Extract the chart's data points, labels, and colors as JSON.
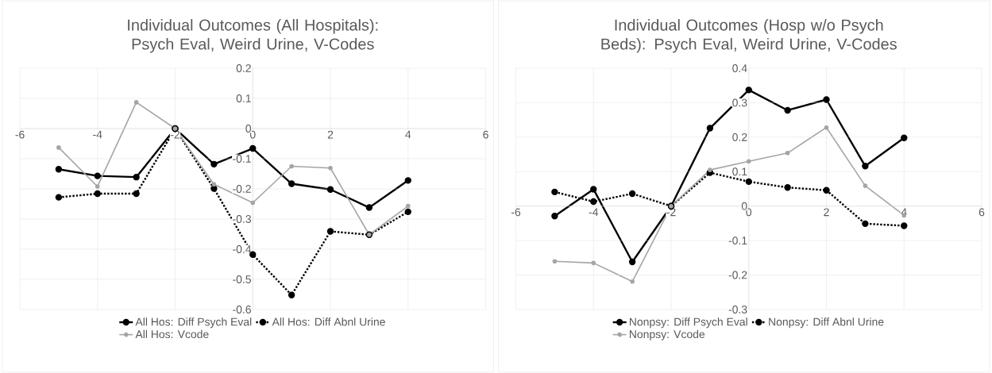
{
  "chart_data": [
    {
      "type": "line",
      "title": "Individual Outcomes (All Hospitals):  Psych Eval, Weird Urine, V-Codes",
      "x": [
        -5,
        -4,
        -3,
        -2,
        -1,
        0,
        1,
        2,
        3,
        4
      ],
      "xlim": [
        -6,
        6
      ],
      "xticks": [
        -6,
        -4,
        -2,
        0,
        2,
        4,
        6
      ],
      "ylim": [
        -0.6,
        0.2
      ],
      "yticks": [
        -0.6,
        -0.5,
        -0.4,
        -0.3,
        -0.2,
        -0.1,
        0,
        0.1,
        0.2
      ],
      "grid": true,
      "legend": "bottom",
      "marker": "circle",
      "series": [
        {
          "name": "All Hos: Diff Psych Eval",
          "color": "#000000",
          "line_style": "solid",
          "values": [
            -0.135,
            -0.157,
            -0.161,
            0,
            -0.118,
            -0.066,
            -0.183,
            -0.202,
            -0.262,
            -0.172
          ]
        },
        {
          "name": "All Hos: Diff Abnl Urine",
          "color": "#000000",
          "line_style": "dotted",
          "values": [
            -0.228,
            -0.216,
            -0.216,
            0,
            -0.199,
            -0.418,
            -0.552,
            -0.341,
            -0.352,
            -0.276
          ]
        },
        {
          "name": "All Hos: Vcode",
          "color": "#a5a5a5",
          "line_style": "solid",
          "values": [
            -0.063,
            -0.192,
            0.087,
            0,
            -0.185,
            -0.246,
            -0.125,
            -0.131,
            -0.352,
            -0.257
          ]
        }
      ]
    },
    {
      "type": "line",
      "title": "Individual Outcomes (Hosp w/o Psych Beds): Psych Eval, Weird Urine, V-Codes",
      "x": [
        -5,
        -4,
        -3,
        -2,
        -1,
        0,
        1,
        2,
        3,
        4
      ],
      "xlim": [
        -6,
        6
      ],
      "xticks": [
        -6,
        -4,
        -2,
        0,
        2,
        4,
        6
      ],
      "ylim": [
        -0.3,
        0.4
      ],
      "yticks": [
        -0.3,
        -0.2,
        -0.1,
        0,
        0.1,
        0.2,
        0.3,
        0.4
      ],
      "grid": true,
      "legend": "bottom",
      "marker": "circle",
      "series": [
        {
          "name": "Nonpsy: Diff Psych Eval",
          "color": "#000000",
          "line_style": "solid",
          "values": [
            -0.029,
            0.049,
            -0.162,
            0,
            0.226,
            0.337,
            0.278,
            0.309,
            0.116,
            0.198
          ]
        },
        {
          "name": "Nonpsy: Diff Abnl Urine",
          "color": "#000000",
          "line_style": "dotted",
          "values": [
            0.041,
            0.013,
            0.036,
            0,
            0.097,
            0.071,
            0.054,
            0.046,
            -0.051,
            -0.057
          ]
        },
        {
          "name": "Nonpsy: Vcode",
          "color": "#a5a5a5",
          "line_style": "solid",
          "values": [
            -0.16,
            -0.165,
            -0.219,
            0,
            0.105,
            0.13,
            0.154,
            0.228,
            0.059,
            -0.027
          ]
        }
      ]
    }
  ]
}
